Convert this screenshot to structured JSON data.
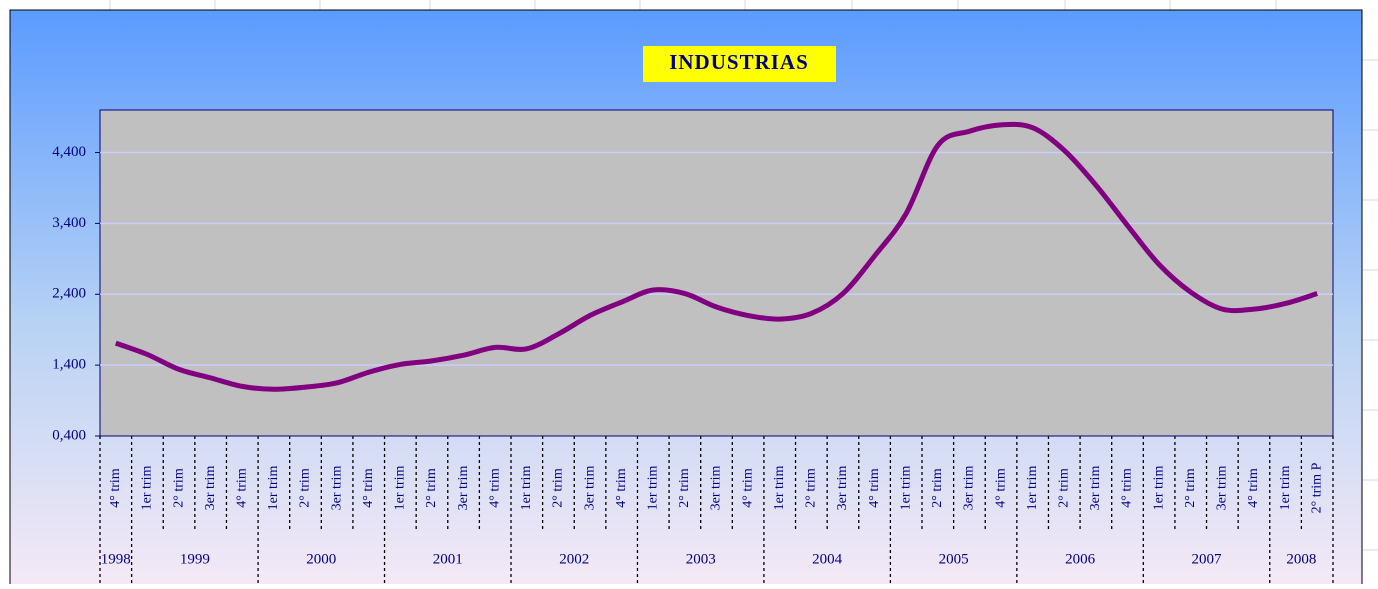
{
  "chart_data": {
    "type": "line",
    "title": "INDUSTRIAS",
    "categories": [
      "4° trim",
      "1er trim",
      "2° trim",
      "3er trim",
      "4° trim",
      "1er trim",
      "2° trim",
      "3er trim",
      "4° trim",
      "1er trim",
      "2° trim",
      "3er trim",
      "4° trim",
      "1er trim",
      "2° trim",
      "3er trim",
      "4° trim",
      "1er trim",
      "2° trim",
      "3er trim",
      "4° trim",
      "1er trim",
      "2° trim",
      "3er trim",
      "4° trim",
      "1er trim",
      "2° trim",
      "3er trim",
      "4° trim",
      "1er trim",
      "2° trim",
      "3er trim",
      "4° trim",
      "1er trim",
      "2° trim",
      "3er trim",
      "4° trim",
      "1er trim",
      "2° trim P"
    ],
    "year_labels": [
      "1998",
      "1999",
      null,
      null,
      null,
      "2000",
      null,
      null,
      null,
      "2001",
      null,
      null,
      null,
      "2002",
      null,
      null,
      null,
      "2003",
      null,
      null,
      null,
      "2004",
      null,
      null,
      null,
      "2005",
      null,
      null,
      null,
      "2006",
      null,
      null,
      null,
      "2007",
      null,
      null,
      null,
      "2008",
      null
    ],
    "values": [
      1.71,
      1.55,
      1.34,
      1.22,
      1.1,
      1.06,
      1.09,
      1.15,
      1.3,
      1.41,
      1.46,
      1.54,
      1.65,
      1.63,
      1.84,
      2.1,
      2.29,
      2.46,
      2.41,
      2.22,
      2.1,
      2.05,
      2.13,
      2.41,
      2.94,
      3.54,
      4.5,
      4.7,
      4.79,
      4.75,
      4.43,
      3.94,
      3.37,
      2.82,
      2.43,
      2.19,
      2.19,
      2.27,
      2.41
    ],
    "color": "#800080",
    "ylim": [
      0.4,
      5.0
    ],
    "yticks": [
      {
        "value": 0.4,
        "label": "0,400"
      },
      {
        "value": 1.4,
        "label": "1,400"
      },
      {
        "value": 2.4,
        "label": "2,400"
      },
      {
        "value": 3.4,
        "label": "3,400"
      },
      {
        "value": 4.4,
        "label": "4,400"
      }
    ],
    "grid": true
  }
}
